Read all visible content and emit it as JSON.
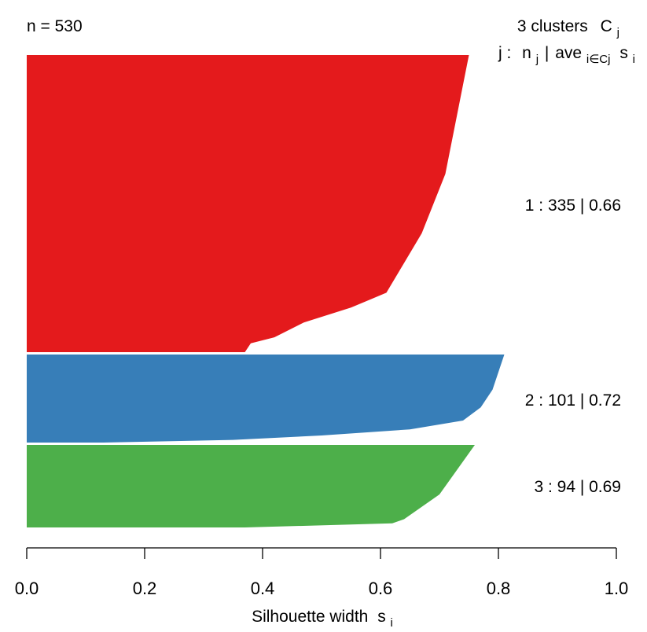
{
  "header": {
    "n_label": "n = 530",
    "clusters_title": "3  clusters",
    "clusters_symbol": "C",
    "clusters_symbol_sub": "j",
    "legend_j": "j :",
    "legend_n": "n",
    "legend_n_sub": "j",
    "legend_sep": "|",
    "legend_ave": "ave",
    "legend_ave_sub": "i∈Cj",
    "legend_s": "s",
    "legend_s_sub": "i"
  },
  "colors": {
    "cluster_1": "#E41A1C",
    "cluster_2": "#377EB8",
    "cluster_3": "#4DAF4A",
    "axis": "#000000"
  },
  "chart_data": {
    "type": "silhouette",
    "n": 530,
    "xlim": [
      0,
      1
    ],
    "x_ticks": [
      0.0,
      0.2,
      0.4,
      0.6,
      0.8,
      1.0
    ],
    "x_tick_labels": [
      "0.0",
      "0.2",
      "0.4",
      "0.6",
      "0.8",
      "1.0"
    ],
    "xlabel": "Silhouette width",
    "xlabel_symbol": "s",
    "xlabel_symbol_sub": "i",
    "clusters": [
      {
        "id": 1,
        "n": 335,
        "avg_width": 0.66,
        "label": "1 :  335  |  0.66",
        "color": "#E41A1C",
        "max_width": 0.75,
        "min_width": 0.37,
        "profile": [
          [
            0,
            0.75
          ],
          [
            0.1,
            0.74
          ],
          [
            0.2,
            0.73
          ],
          [
            0.3,
            0.72
          ],
          [
            0.4,
            0.71
          ],
          [
            0.5,
            0.69
          ],
          [
            0.6,
            0.67
          ],
          [
            0.7,
            0.64
          ],
          [
            0.8,
            0.61
          ],
          [
            0.85,
            0.55
          ],
          [
            0.9,
            0.47
          ],
          [
            0.95,
            0.42
          ],
          [
            0.97,
            0.38
          ],
          [
            1.0,
            0.37
          ]
        ]
      },
      {
        "id": 2,
        "n": 101,
        "avg_width": 0.72,
        "label": "2 :  101  |  0.72",
        "color": "#377EB8",
        "max_width": 0.81,
        "min_width": 0.13,
        "profile": [
          [
            0,
            0.81
          ],
          [
            0.2,
            0.8
          ],
          [
            0.4,
            0.79
          ],
          [
            0.6,
            0.77
          ],
          [
            0.75,
            0.74
          ],
          [
            0.85,
            0.65
          ],
          [
            0.92,
            0.5
          ],
          [
            0.97,
            0.35
          ],
          [
            1.0,
            0.13
          ]
        ]
      },
      {
        "id": 3,
        "n": 94,
        "avg_width": 0.69,
        "label": "3 :  94  |  0.69",
        "color": "#4DAF4A",
        "max_width": 0.76,
        "min_width": 0.37,
        "profile": [
          [
            0,
            0.76
          ],
          [
            0.2,
            0.74
          ],
          [
            0.4,
            0.72
          ],
          [
            0.6,
            0.7
          ],
          [
            0.8,
            0.66
          ],
          [
            0.9,
            0.64
          ],
          [
            0.95,
            0.62
          ],
          [
            1.0,
            0.37
          ]
        ]
      }
    ]
  }
}
